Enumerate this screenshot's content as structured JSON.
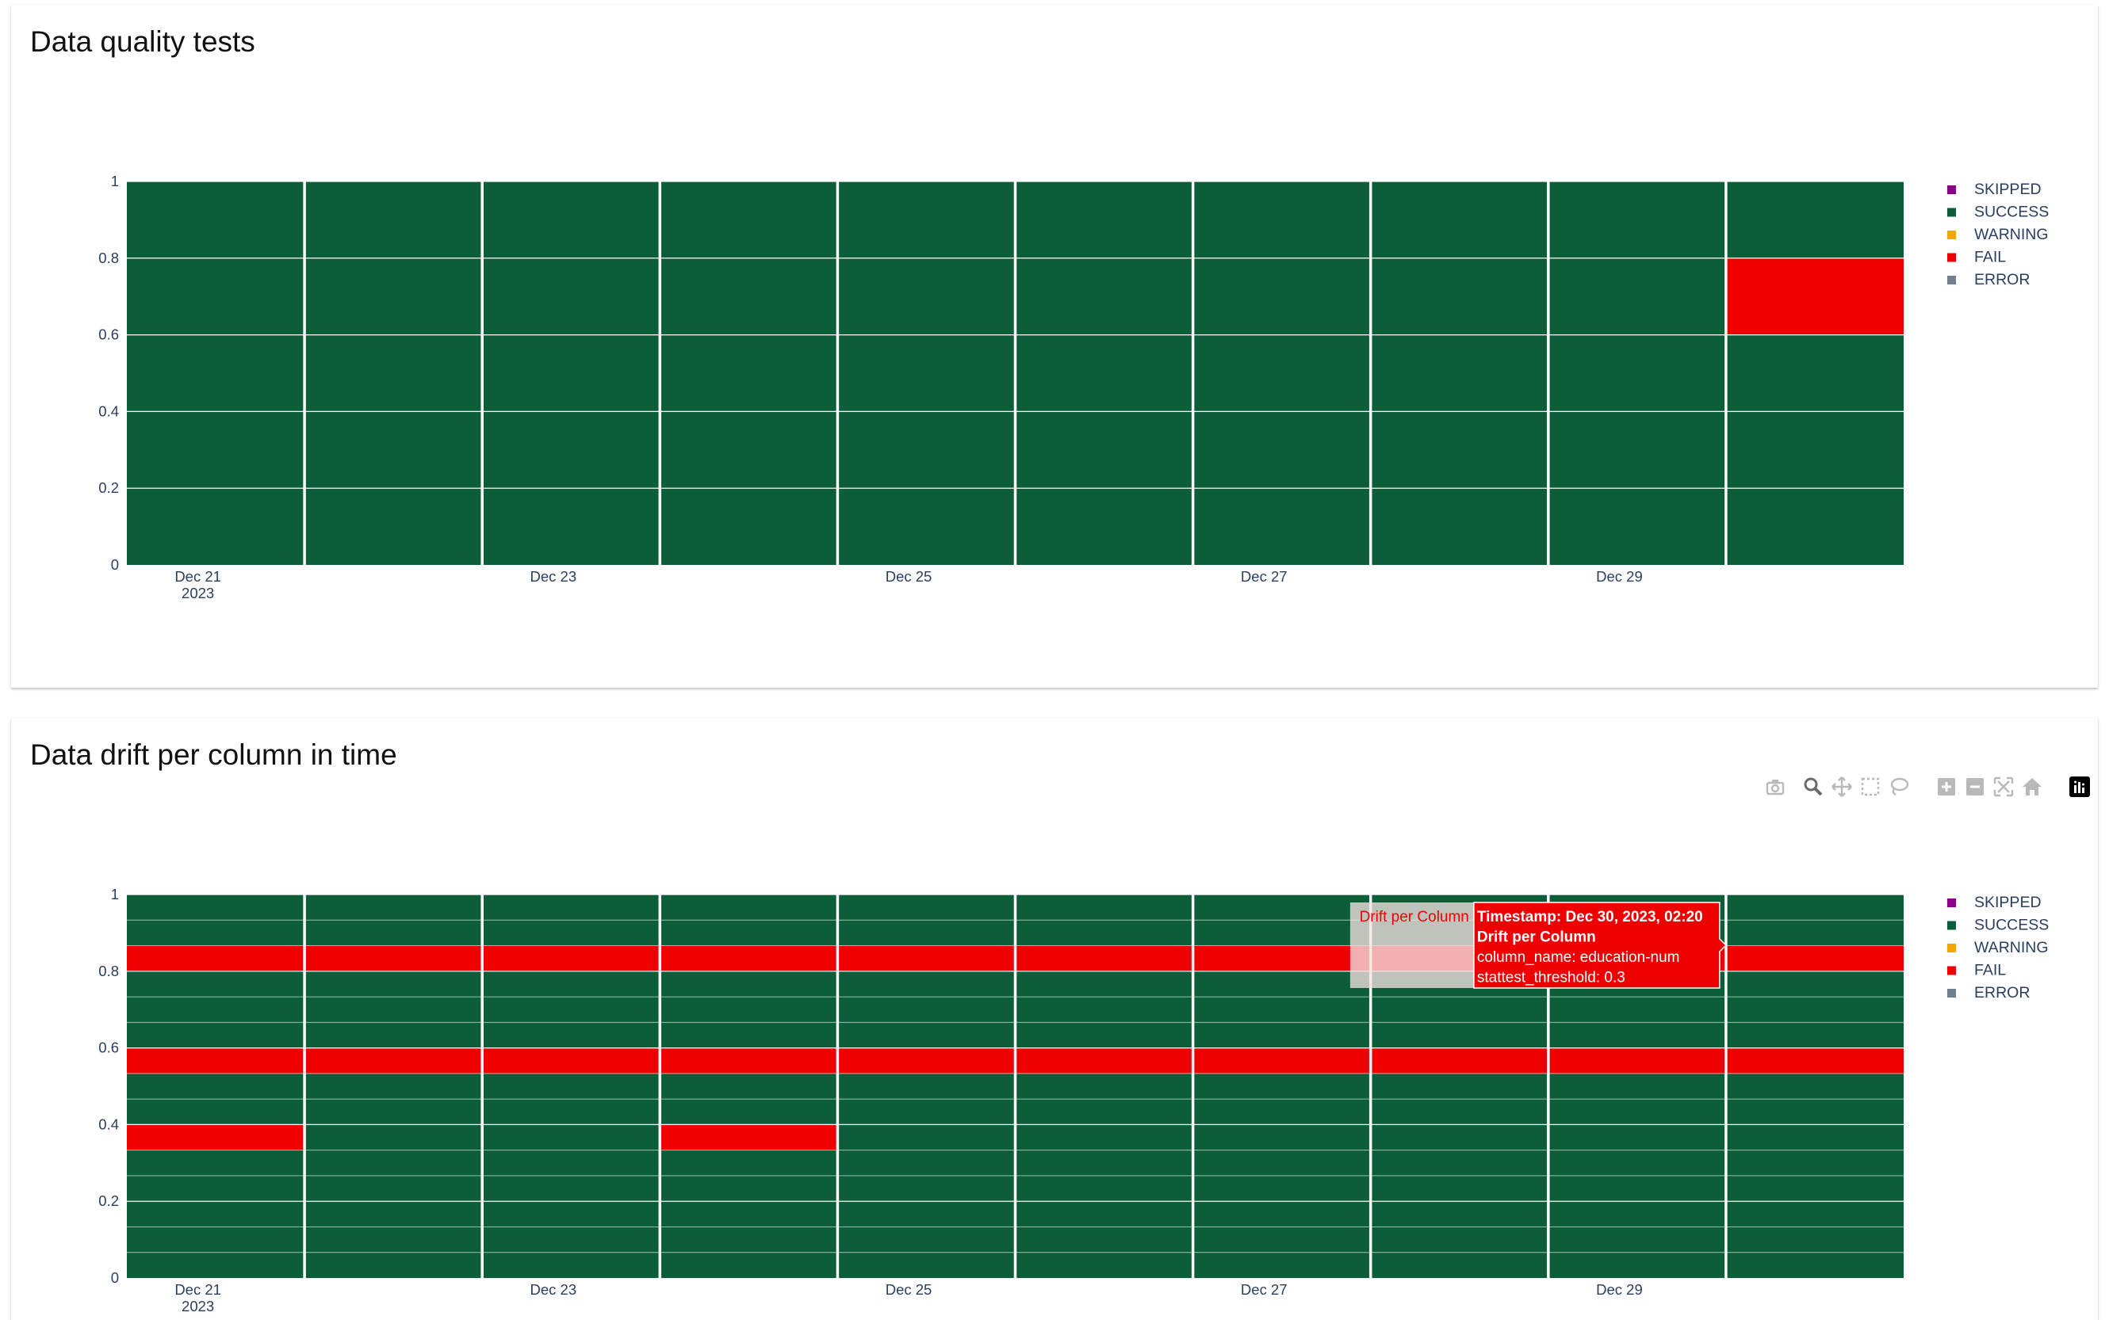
{
  "panels": [
    {
      "title": "Data quality tests",
      "legend": [
        {
          "label": "SKIPPED",
          "color": "#8b008b"
        },
        {
          "label": "SUCCESS",
          "color": "#0b5e38"
        },
        {
          "label": "WARNING",
          "color": "#f5a600"
        },
        {
          "label": "FAIL",
          "color": "#ee0000"
        },
        {
          "label": "ERROR",
          "color": "#708090"
        }
      ]
    },
    {
      "title": "Data drift per column in time",
      "legend": [
        {
          "label": "SKIPPED",
          "color": "#8b008b"
        },
        {
          "label": "SUCCESS",
          "color": "#0b5e38"
        },
        {
          "label": "WARNING",
          "color": "#f5a600"
        },
        {
          "label": "FAIL",
          "color": "#ee0000"
        },
        {
          "label": "ERROR",
          "color": "#708090"
        }
      ],
      "hover": {
        "trace_name": "Drift per Column",
        "lines": [
          "Timestamp: Dec 30, 2023, 02:20",
          "Drift per Column",
          "column_name: education-num",
          "stattest_threshold: 0.3"
        ]
      },
      "modebar": [
        "camera-icon",
        "zoom-icon",
        "pan-icon",
        "box-select-icon",
        "lasso-icon",
        "zoom-in-icon",
        "zoom-out-icon",
        "autoscale-icon",
        "reset-axes-icon",
        "plotly-logo-icon"
      ]
    }
  ],
  "chart_data": [
    {
      "type": "bar",
      "stacked": true,
      "title": "Data quality tests",
      "x": [
        "2023-12-21",
        "2023-12-22",
        "2023-12-23",
        "2023-12-24",
        "2023-12-25",
        "2023-12-26",
        "2023-12-27",
        "2023-12-28",
        "2023-12-29",
        "2023-12-30"
      ],
      "x_tick_labels": [
        {
          "date": "2023-12-21",
          "label": "Dec 21",
          "sub": "2023"
        },
        {
          "date": "2023-12-23",
          "label": "Dec 23",
          "sub": ""
        },
        {
          "date": "2023-12-25",
          "label": "Dec 25",
          "sub": ""
        },
        {
          "date": "2023-12-27",
          "label": "Dec 27",
          "sub": ""
        },
        {
          "date": "2023-12-29",
          "label": "Dec 29",
          "sub": ""
        }
      ],
      "y_ticks": [
        "0",
        "0.2",
        "0.4",
        "0.6",
        "0.8",
        "1"
      ],
      "ylim": [
        0,
        1
      ],
      "segments_per_bar": 5,
      "status_by_bar": [
        [
          "SUCCESS",
          "SUCCESS",
          "SUCCESS",
          "SUCCESS",
          "SUCCESS"
        ],
        [
          "SUCCESS",
          "SUCCESS",
          "SUCCESS",
          "SUCCESS",
          "SUCCESS"
        ],
        [
          "SUCCESS",
          "SUCCESS",
          "SUCCESS",
          "SUCCESS",
          "SUCCESS"
        ],
        [
          "SUCCESS",
          "SUCCESS",
          "SUCCESS",
          "SUCCESS",
          "SUCCESS"
        ],
        [
          "SUCCESS",
          "SUCCESS",
          "SUCCESS",
          "SUCCESS",
          "SUCCESS"
        ],
        [
          "SUCCESS",
          "SUCCESS",
          "SUCCESS",
          "SUCCESS",
          "SUCCESS"
        ],
        [
          "SUCCESS",
          "SUCCESS",
          "SUCCESS",
          "SUCCESS",
          "SUCCESS"
        ],
        [
          "SUCCESS",
          "SUCCESS",
          "SUCCESS",
          "SUCCESS",
          "SUCCESS"
        ],
        [
          "SUCCESS",
          "SUCCESS",
          "SUCCESS",
          "SUCCESS",
          "SUCCESS"
        ],
        [
          "SUCCESS",
          "SUCCESS",
          "SUCCESS",
          "FAIL",
          "SUCCESS"
        ]
      ],
      "legend": [
        "SKIPPED",
        "SUCCESS",
        "WARNING",
        "FAIL",
        "ERROR"
      ],
      "legend_position": "top-right",
      "grid": true
    },
    {
      "type": "bar",
      "stacked": true,
      "title": "Data drift per column in time",
      "x": [
        "2023-12-21",
        "2023-12-22",
        "2023-12-23",
        "2023-12-24",
        "2023-12-25",
        "2023-12-26",
        "2023-12-27",
        "2023-12-28",
        "2023-12-29",
        "2023-12-30"
      ],
      "x_tick_labels": [
        {
          "date": "2023-12-21",
          "label": "Dec 21",
          "sub": "2023"
        },
        {
          "date": "2023-12-23",
          "label": "Dec 23",
          "sub": ""
        },
        {
          "date": "2023-12-25",
          "label": "Dec 25",
          "sub": ""
        },
        {
          "date": "2023-12-27",
          "label": "Dec 27",
          "sub": ""
        },
        {
          "date": "2023-12-29",
          "label": "Dec 29",
          "sub": ""
        }
      ],
      "y_ticks": [
        "0",
        "0.2",
        "0.4",
        "0.6",
        "0.8",
        "1"
      ],
      "ylim": [
        0,
        1
      ],
      "segments_per_bar": 15,
      "status_by_bar": [
        [
          "SUCCESS",
          "SUCCESS",
          "SUCCESS",
          "SUCCESS",
          "SUCCESS",
          "FAIL",
          "SUCCESS",
          "SUCCESS",
          "FAIL",
          "SUCCESS",
          "SUCCESS",
          "SUCCESS",
          "FAIL",
          "SUCCESS",
          "SUCCESS"
        ],
        [
          "SUCCESS",
          "SUCCESS",
          "SUCCESS",
          "SUCCESS",
          "SUCCESS",
          "SUCCESS",
          "SUCCESS",
          "SUCCESS",
          "FAIL",
          "SUCCESS",
          "SUCCESS",
          "SUCCESS",
          "FAIL",
          "SUCCESS",
          "SUCCESS"
        ],
        [
          "SUCCESS",
          "SUCCESS",
          "SUCCESS",
          "SUCCESS",
          "SUCCESS",
          "SUCCESS",
          "SUCCESS",
          "SUCCESS",
          "FAIL",
          "SUCCESS",
          "SUCCESS",
          "SUCCESS",
          "FAIL",
          "SUCCESS",
          "SUCCESS"
        ],
        [
          "SUCCESS",
          "SUCCESS",
          "SUCCESS",
          "SUCCESS",
          "SUCCESS",
          "FAIL",
          "SUCCESS",
          "SUCCESS",
          "FAIL",
          "SUCCESS",
          "SUCCESS",
          "SUCCESS",
          "FAIL",
          "SUCCESS",
          "SUCCESS"
        ],
        [
          "SUCCESS",
          "SUCCESS",
          "SUCCESS",
          "SUCCESS",
          "SUCCESS",
          "SUCCESS",
          "SUCCESS",
          "SUCCESS",
          "FAIL",
          "SUCCESS",
          "SUCCESS",
          "SUCCESS",
          "FAIL",
          "SUCCESS",
          "SUCCESS"
        ],
        [
          "SUCCESS",
          "SUCCESS",
          "SUCCESS",
          "SUCCESS",
          "SUCCESS",
          "SUCCESS",
          "SUCCESS",
          "SUCCESS",
          "FAIL",
          "SUCCESS",
          "SUCCESS",
          "SUCCESS",
          "FAIL",
          "SUCCESS",
          "SUCCESS"
        ],
        [
          "SUCCESS",
          "SUCCESS",
          "SUCCESS",
          "SUCCESS",
          "SUCCESS",
          "SUCCESS",
          "SUCCESS",
          "SUCCESS",
          "FAIL",
          "SUCCESS",
          "SUCCESS",
          "SUCCESS",
          "FAIL",
          "SUCCESS",
          "SUCCESS"
        ],
        [
          "SUCCESS",
          "SUCCESS",
          "SUCCESS",
          "SUCCESS",
          "SUCCESS",
          "SUCCESS",
          "SUCCESS",
          "SUCCESS",
          "FAIL",
          "SUCCESS",
          "SUCCESS",
          "SUCCESS",
          "FAIL",
          "SUCCESS",
          "SUCCESS"
        ],
        [
          "SUCCESS",
          "SUCCESS",
          "SUCCESS",
          "SUCCESS",
          "SUCCESS",
          "SUCCESS",
          "SUCCESS",
          "SUCCESS",
          "FAIL",
          "SUCCESS",
          "SUCCESS",
          "SUCCESS",
          "FAIL",
          "SUCCESS",
          "SUCCESS"
        ],
        [
          "SUCCESS",
          "SUCCESS",
          "SUCCESS",
          "SUCCESS",
          "SUCCESS",
          "SUCCESS",
          "SUCCESS",
          "SUCCESS",
          "FAIL",
          "SUCCESS",
          "SUCCESS",
          "SUCCESS",
          "FAIL",
          "SUCCESS",
          "SUCCESS"
        ]
      ],
      "hovered_bar": "2023-12-30",
      "legend": [
        "SKIPPED",
        "SUCCESS",
        "WARNING",
        "FAIL",
        "ERROR"
      ],
      "legend_position": "top-right",
      "grid": true
    }
  ]
}
